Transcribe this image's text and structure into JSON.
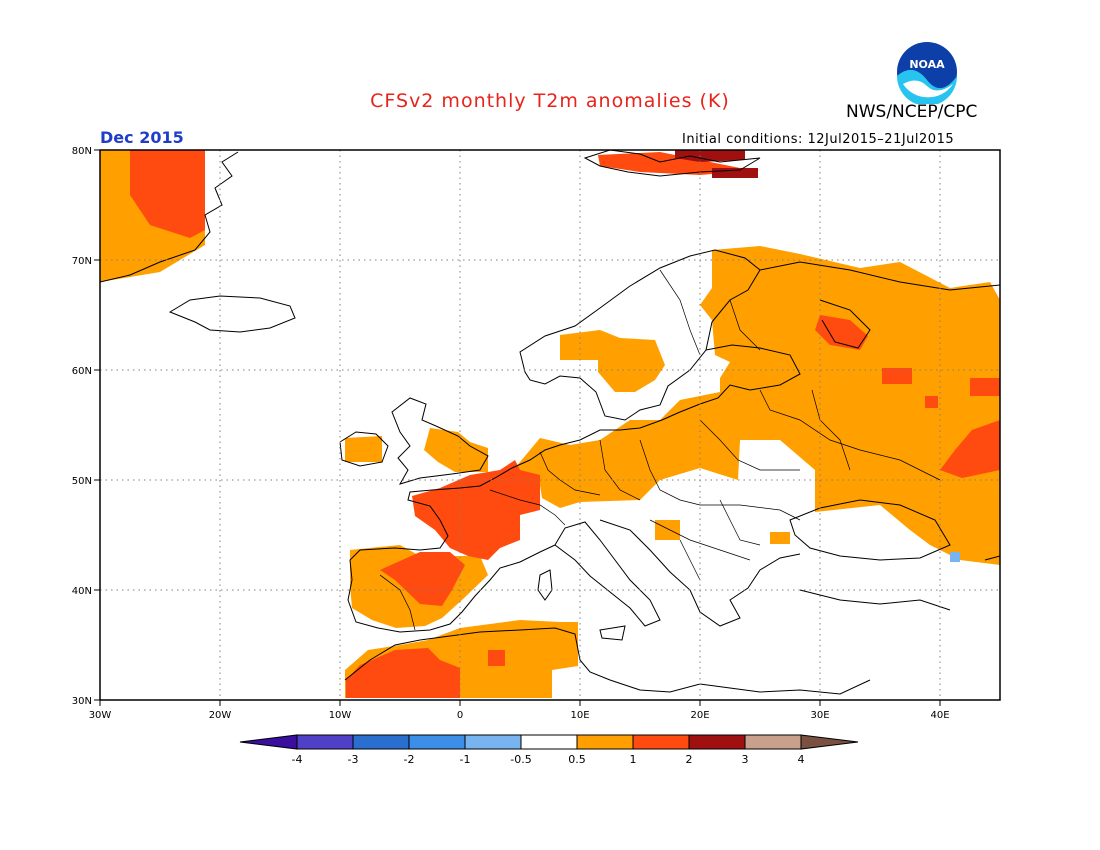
{
  "header": {
    "title": "CFSv2 monthly T2m anomalies (K)",
    "org": "NWS/NCEP/CPC",
    "month": "Dec 2015",
    "initial_conditions": "Initial conditions: 12Jul2015–21Jul2015",
    "logo_text": "NOAA"
  },
  "map": {
    "region": "Europe",
    "lon_range": [
      -30,
      45
    ],
    "lat_range": [
      30,
      80
    ],
    "lat_labels": [
      "80N",
      "70N",
      "60N",
      "50N",
      "40N",
      "30N"
    ],
    "lon_labels": [
      "30W",
      "20W",
      "10W",
      "0",
      "10E",
      "20E",
      "30E",
      "40E"
    ]
  },
  "colorbar": {
    "tick_labels": [
      "-4",
      "-3",
      "-2",
      "-1",
      "-0.5",
      "0.5",
      "1",
      "2",
      "3",
      "4"
    ],
    "colors": [
      "#3a0fa0",
      "#5040c8",
      "#2a6ed0",
      "#3c8ee8",
      "#78b4f0",
      "#ffffff",
      "#ff9f00",
      "#ff4a10",
      "#a01010",
      "#c8a08c",
      "#7a5040"
    ]
  },
  "legend_colors": {
    "anom_05_1": "#ff9f00",
    "anom_1_2": "#ff4a10",
    "anom_2_3": "#a01010",
    "anom_neg": "#78b4f0"
  }
}
